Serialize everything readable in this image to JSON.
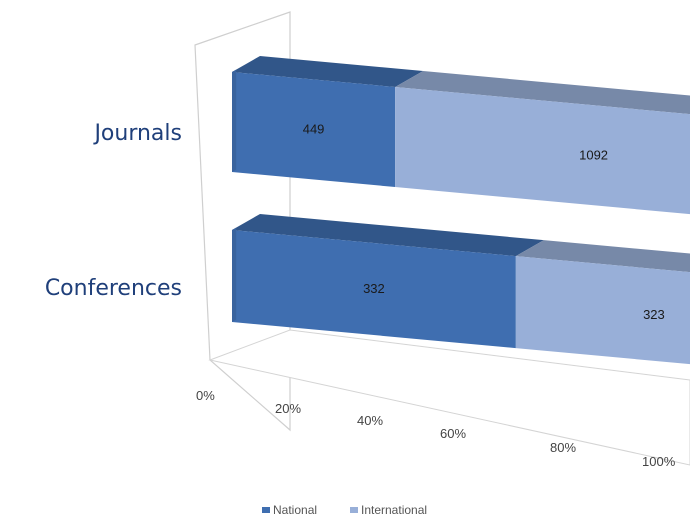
{
  "chart_data": {
    "type": "bar",
    "orientation": "horizontal",
    "stacking": "percent",
    "three_d": true,
    "categories": [
      "Journals",
      "Conferences"
    ],
    "series": [
      {
        "name": "National",
        "values": [
          449,
          332
        ],
        "color": "#3f6eb0"
      },
      {
        "name": "International",
        "values": [
          1092,
          323
        ],
        "color": "#98afd8"
      }
    ],
    "xlim": [
      0,
      100
    ],
    "x_ticks": [
      "0%",
      "20%",
      "40%",
      "60%",
      "80%",
      "100%"
    ],
    "title": "",
    "xlabel": "",
    "ylabel": "",
    "legend_position": "bottom",
    "grid": false
  }
}
